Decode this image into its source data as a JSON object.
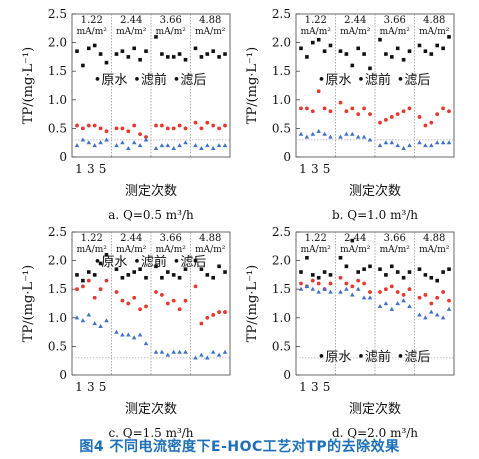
{
  "figure_caption": "图4 不同电流密度下E-HOC工艺对TP的去除效果",
  "colors": {
    "raw": "#111111",
    "pre": "#e8372e",
    "post": "#3f72c9",
    "caption": "#1d6fb8"
  },
  "chart_data": [
    {
      "type": "scatter",
      "panel_label": "a. Q=0.5 m³/h",
      "ylabel": "TP/(mg·L⁻¹)",
      "xlabel": "测定次数",
      "ylim": [
        0,
        2.5
      ],
      "yticks": [
        "0",
        "0.5",
        "1.0",
        "1.5",
        "2.0",
        "2.5"
      ],
      "xticks": [
        "1",
        "3",
        "5"
      ],
      "current_densities": [
        "1.22",
        "2.44",
        "3.66",
        "4.88"
      ],
      "current_unit": "mA/m²",
      "reference_line": 0.3,
      "legend": [
        "原水",
        "滤前",
        "滤后"
      ],
      "legend_placement": "middle",
      "series": [
        {
          "name": "原水",
          "values": [
            [
              1.85,
              1.6,
              1.9,
              1.95,
              1.8,
              1.65
            ],
            [
              1.8,
              1.85,
              1.75,
              1.9,
              1.7,
              1.85
            ],
            [
              2.1,
              1.8,
              1.75,
              1.75,
              1.8,
              1.7
            ],
            [
              1.9,
              1.75,
              1.8,
              1.85,
              1.75,
              1.8
            ]
          ]
        },
        {
          "name": "滤前",
          "values": [
            [
              0.55,
              0.5,
              0.55,
              0.55,
              0.5,
              0.45
            ],
            [
              0.5,
              0.5,
              0.45,
              0.55,
              0.4,
              0.35
            ],
            [
              0.55,
              0.55,
              0.5,
              0.5,
              0.55,
              0.5
            ],
            [
              0.6,
              0.5,
              0.6,
              0.55,
              0.5,
              0.55
            ]
          ]
        },
        {
          "name": "滤后",
          "values": [
            [
              0.2,
              0.3,
              0.25,
              0.2,
              0.25,
              0.3
            ],
            [
              0.2,
              0.25,
              0.15,
              0.25,
              0.2,
              0.3
            ],
            [
              0.15,
              0.2,
              0.2,
              0.15,
              0.2,
              0.25
            ],
            [
              0.2,
              0.15,
              0.2,
              0.15,
              0.2,
              0.2
            ]
          ]
        }
      ]
    },
    {
      "type": "scatter",
      "panel_label": "b. Q=1.0 m³/h",
      "ylabel": "TP/(mg·L⁻¹)",
      "xlabel": "测定次数",
      "ylim": [
        0,
        2.5
      ],
      "yticks": [
        "0",
        "0.5",
        "1.0",
        "1.5",
        "2.0",
        "2.5"
      ],
      "xticks": [
        "1",
        "3",
        "5"
      ],
      "current_densities": [
        "1.22",
        "2.44",
        "3.66",
        "4.88"
      ],
      "current_unit": "mA/m²",
      "reference_line": 0.3,
      "legend": [
        "原水",
        "滤前",
        "滤后"
      ],
      "legend_placement": "middle",
      "series": [
        {
          "name": "原水",
          "values": [
            [
              1.9,
              1.75,
              2.0,
              2.05,
              1.85,
              1.95
            ],
            [
              1.85,
              1.8,
              1.6,
              1.9,
              1.8,
              1.55
            ],
            [
              2.05,
              1.8,
              1.75,
              1.9,
              1.7,
              1.85
            ],
            [
              1.95,
              1.85,
              1.8,
              1.95,
              1.9,
              2.1
            ]
          ]
        },
        {
          "name": "滤前",
          "values": [
            [
              0.85,
              0.85,
              0.8,
              1.15,
              0.85,
              0.8
            ],
            [
              0.95,
              0.8,
              0.85,
              0.75,
              0.85,
              0.75
            ],
            [
              0.6,
              0.65,
              0.7,
              0.75,
              0.8,
              0.85
            ],
            [
              0.7,
              0.55,
              0.6,
              0.75,
              0.85,
              0.8
            ]
          ]
        },
        {
          "name": "滤后",
          "values": [
            [
              0.4,
              0.35,
              0.4,
              0.45,
              0.4,
              0.35
            ],
            [
              0.35,
              0.4,
              0.4,
              0.35,
              0.35,
              0.3
            ],
            [
              0.2,
              0.25,
              0.25,
              0.2,
              0.15,
              0.2
            ],
            [
              0.25,
              0.2,
              0.2,
              0.25,
              0.25,
              0.25
            ]
          ]
        }
      ]
    },
    {
      "type": "scatter",
      "panel_label": "c. Q=1.5 m³/h",
      "ylabel": "TP/(mg·L⁻¹)",
      "xlabel": "测定次数",
      "ylim": [
        0,
        2.5
      ],
      "yticks": [
        "0",
        "0.5",
        "1.0",
        "1.5",
        "2.0",
        "2.5"
      ],
      "xticks": [
        "1",
        "3",
        "5"
      ],
      "current_densities": [
        "1.22",
        "2.44",
        "3.66",
        "4.88"
      ],
      "current_unit": "mA/m²",
      "reference_line": 0.3,
      "legend": [
        "原水",
        "滤前",
        "滤后"
      ],
      "legend_placement": "top",
      "series": [
        {
          "name": "原水",
          "values": [
            [
              1.75,
              1.65,
              1.8,
              1.75,
              1.95,
              2.1
            ],
            [
              1.85,
              1.7,
              1.75,
              1.8,
              1.85,
              1.7
            ],
            [
              1.9,
              1.7,
              1.8,
              1.75,
              1.7,
              1.85
            ],
            [
              2.0,
              1.85,
              1.75,
              1.7,
              1.9,
              1.8
            ]
          ]
        },
        {
          "name": "滤前",
          "values": [
            [
              1.5,
              1.55,
              1.65,
              1.35,
              1.5,
              1.65
            ],
            [
              1.45,
              1.3,
              1.25,
              1.35,
              1.15,
              1.2
            ],
            [
              1.45,
              1.4,
              1.25,
              1.3,
              1.15,
              1.3
            ],
            [
              1.55,
              0.9,
              1.0,
              1.05,
              1.1,
              1.1
            ]
          ]
        },
        {
          "name": "滤后",
          "values": [
            [
              1.0,
              0.95,
              1.05,
              0.9,
              0.85,
              0.95
            ],
            [
              0.75,
              0.7,
              0.7,
              0.65,
              0.7,
              0.55
            ],
            [
              0.4,
              0.4,
              0.35,
              0.4,
              0.4,
              0.4
            ],
            [
              0.3,
              0.35,
              0.3,
              0.4,
              0.35,
              0.4
            ]
          ]
        }
      ]
    },
    {
      "type": "scatter",
      "panel_label": "d. Q=2.0 m³/h",
      "ylabel": "TP/(mg·L⁻¹)",
      "xlabel": "测定次数",
      "ylim": [
        0,
        2.5
      ],
      "yticks": [
        "0",
        "0.5",
        "1.0",
        "1.5",
        "2.0",
        "2.5"
      ],
      "xticks": [
        "1",
        "3",
        "5"
      ],
      "current_densities": [
        "1.22",
        "2.44",
        "3.66",
        "4.88"
      ],
      "current_unit": "mA/m²",
      "reference_line": 0.3,
      "legend": [
        "原水",
        "滤前",
        "滤后"
      ],
      "legend_placement": "bottom",
      "series": [
        {
          "name": "原水",
          "values": [
            [
              1.8,
              2.05,
              1.75,
              1.7,
              1.8,
              1.75
            ],
            [
              2.05,
              1.9,
              2.35,
              1.8,
              1.85,
              1.9
            ],
            [
              1.85,
              1.75,
              1.9,
              1.8,
              1.7,
              1.8
            ],
            [
              1.85,
              1.75,
              1.7,
              1.65,
              1.8,
              1.85
            ]
          ]
        },
        {
          "name": "滤前",
          "values": [
            [
              1.6,
              1.55,
              1.65,
              1.6,
              1.5,
              1.6
            ],
            [
              1.7,
              1.6,
              1.55,
              1.65,
              1.6,
              1.45
            ],
            [
              1.45,
              1.5,
              1.55,
              1.45,
              1.4,
              1.5
            ],
            [
              1.35,
              1.4,
              1.25,
              1.35,
              1.45,
              1.3
            ]
          ]
        },
        {
          "name": "滤后",
          "values": [
            [
              1.5,
              1.55,
              1.5,
              1.45,
              1.5,
              1.45
            ],
            [
              1.45,
              1.5,
              1.4,
              1.5,
              1.35,
              1.35
            ],
            [
              1.2,
              1.25,
              1.15,
              1.25,
              1.3,
              1.2
            ],
            [
              1.05,
              1.0,
              1.1,
              1.05,
              1.0,
              1.15
            ]
          ]
        }
      ]
    }
  ]
}
